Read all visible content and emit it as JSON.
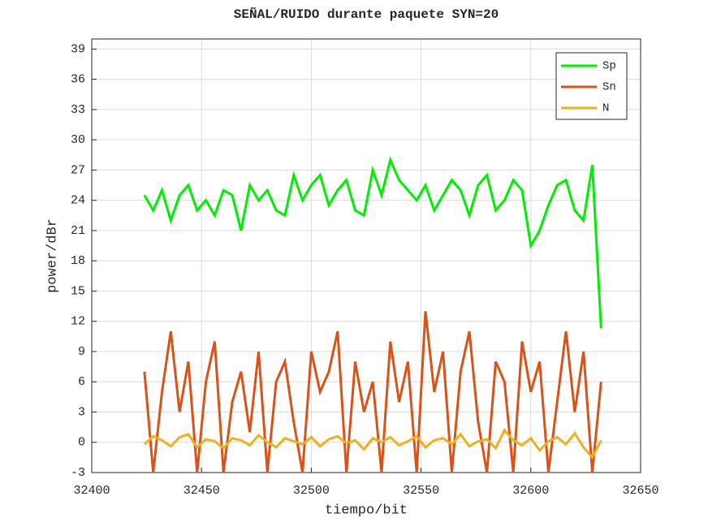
{
  "chart_data": {
    "type": "line",
    "title": "SEÑAL/RUIDO durante paquete SYN=20",
    "xlabel": "tiempo/bit",
    "ylabel": "power/dBr",
    "x": [
      32424,
      32428,
      32432,
      32436,
      32440,
      32444,
      32448,
      32452,
      32456,
      32460,
      32464,
      32468,
      32472,
      32476,
      32480,
      32484,
      32488,
      32492,
      32496,
      32500,
      32504,
      32508,
      32512,
      32516,
      32520,
      32524,
      32528,
      32532,
      32536,
      32540,
      32544,
      32548,
      32552,
      32556,
      32560,
      32564,
      32568,
      32572,
      32576,
      32580,
      32584,
      32588,
      32592,
      32596,
      32600,
      32604,
      32608,
      32612,
      32616,
      32620,
      32624,
      32628,
      32632
    ],
    "series": [
      {
        "name": "Sp",
        "color": "#00ee00",
        "values": [
          24.5,
          23,
          25,
          22,
          24.5,
          25.5,
          23,
          24,
          22.5,
          25,
          24.5,
          21,
          25.5,
          24,
          25,
          23,
          22.5,
          26.5,
          24,
          25.5,
          26.5,
          23.5,
          25,
          26,
          23,
          22.5,
          27,
          24.5,
          28,
          26,
          25,
          24,
          25.5,
          23,
          24.5,
          26,
          25,
          22.5,
          25.5,
          26.5,
          23,
          24,
          26,
          25,
          19.5,
          21,
          23.5,
          25.5,
          26,
          23,
          22,
          27.5,
          11.3
        ]
      },
      {
        "name": "Sn",
        "color": "#d95319",
        "values": [
          7,
          -3,
          5,
          11,
          3,
          8,
          -3,
          6,
          10,
          -3,
          4,
          7,
          1,
          9,
          -3,
          6,
          8,
          2,
          -3,
          9,
          5,
          7,
          11,
          -3,
          8,
          3,
          6,
          -3,
          10,
          4,
          8,
          -3,
          13,
          5,
          9,
          -3,
          7,
          11,
          2,
          -3,
          8,
          6,
          -3,
          10,
          5,
          8,
          -3,
          4,
          11,
          3,
          9,
          -3,
          6
        ]
      },
      {
        "name": "N",
        "color": "#edb120",
        "values": [
          -0.2,
          0.6,
          0.2,
          -0.4,
          0.5,
          0.8,
          -0.5,
          0.3,
          0.1,
          -0.6,
          0.4,
          0.2,
          -0.3,
          0.7,
          0,
          -0.5,
          0.4,
          0.1,
          -0.2,
          0.5,
          -0.4,
          0.3,
          0.6,
          -0.1,
          0.2,
          -0.7,
          0.4,
          0,
          0.5,
          -0.3,
          0.1,
          0.6,
          -0.5,
          0.2,
          0.4,
          -0.2,
          0.8,
          -0.4,
          0.1,
          0.3,
          -0.6,
          1.2,
          0.2,
          -0.3,
          0.4,
          -0.8,
          0.1,
          0.5,
          -0.2,
          0.9,
          -0.5,
          -1.5,
          0.2
        ]
      }
    ],
    "xlim": [
      32400,
      32650
    ],
    "xticks": [
      32400,
      32450,
      32500,
      32550,
      32600,
      32650
    ],
    "ylim": [
      -3,
      40
    ],
    "yticks": [
      -3,
      0,
      3,
      6,
      9,
      12,
      15,
      18,
      21,
      24,
      27,
      30,
      33,
      36,
      39
    ],
    "grid": true,
    "legend": "upper right"
  }
}
